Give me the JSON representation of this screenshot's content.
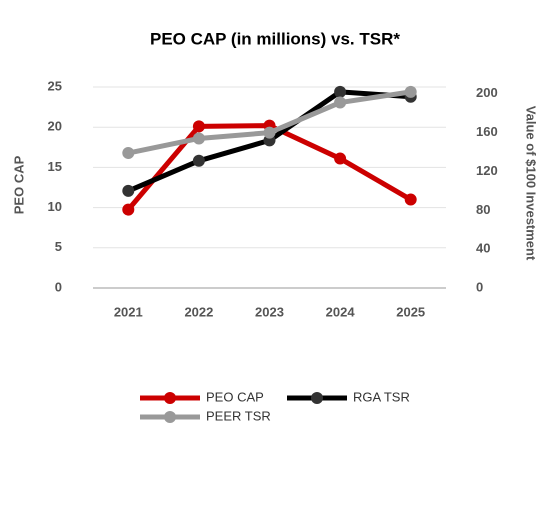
{
  "chart_data": {
    "type": "line",
    "title": "PEO CAP (in millions) vs. TSR*",
    "ylabel": "PEO CAP",
    "y2label": "Value of $100 Investment",
    "categories": [
      "2021",
      "2022",
      "2023",
      "2024",
      "2025"
    ],
    "series": [
      {
        "name": "PEO CAP",
        "color": "#cc0000",
        "values": [
          9.75,
          20.1,
          20.2,
          16.1,
          11
        ]
      },
      {
        "name": "RGA TSR",
        "color": "#000000",
        "axis": "y2",
        "values": [
          100,
          131,
          152,
          202,
          197
        ]
      },
      {
        "name": "PEER TSR",
        "color": "#999999",
        "axis": "y2",
        "values": [
          139,
          154,
          160,
          191,
          202
        ]
      }
    ],
    "ylim": [
      0,
      25
    ],
    "yticks": [
      0,
      5,
      10,
      15,
      20,
      25
    ],
    "y2lim": [
      0,
      207
    ],
    "y2ticks": [
      0,
      40,
      80,
      120,
      160,
      200
    ],
    "grid": true
  }
}
